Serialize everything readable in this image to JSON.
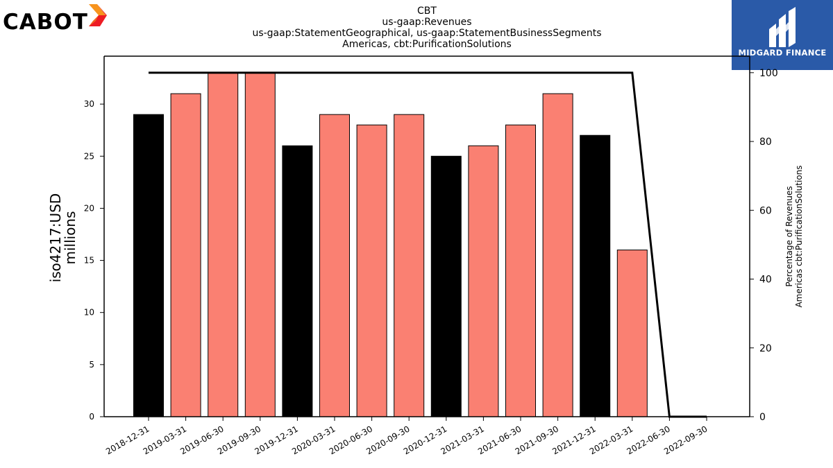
{
  "branding": {
    "company_logo_text": "CABOT",
    "company_logo_icon": "cabot-flame-icon",
    "provider_logo_text": "MIDGARD FINANCE",
    "provider_logo_icon": "midgard-rune-icon",
    "provider_color": "#2a5aa8"
  },
  "chart_data": {
    "type": "bar",
    "title_lines": [
      "CBT",
      "us-gaap:Revenues",
      "us-gaap:StatementGeographical, us-gaap:StatementBusinessSegments",
      "Americas, cbt:PurificationSolutions"
    ],
    "ylabel_lines": [
      "iso4217:USD",
      "millions"
    ],
    "y2label_lines": [
      "Percentage of Revenues",
      "Americas cbt:PurificationSolutions"
    ],
    "categories": [
      "2018-12-31",
      "2019-03-31",
      "2019-06-30",
      "2019-09-30",
      "2019-12-31",
      "2020-03-31",
      "2020-06-30",
      "2020-09-30",
      "2020-12-31",
      "2021-03-31",
      "2021-06-30",
      "2021-09-30",
      "2021-12-31",
      "2022-03-31",
      "2022-06-30",
      "2022-09-30"
    ],
    "values": [
      29,
      31,
      33,
      33,
      26,
      29,
      28,
      29,
      25,
      26,
      28,
      31,
      27,
      16,
      null,
      null
    ],
    "bar_colors": [
      "#000000",
      "#fa8072",
      "#fa8072",
      "#fa8072",
      "#000000",
      "#fa8072",
      "#fa8072",
      "#fa8072",
      "#000000",
      "#fa8072",
      "#fa8072",
      "#fa8072",
      "#000000",
      "#fa8072",
      "#fa8072",
      "#fa8072"
    ],
    "percentage_series": {
      "values": [
        100,
        100,
        100,
        100,
        100,
        100,
        100,
        100,
        100,
        100,
        100,
        100,
        100,
        100,
        0,
        0
      ],
      "color": "#000000"
    },
    "ylim": [
      0,
      34.6
    ],
    "yticks": [
      0,
      5,
      10,
      15,
      20,
      25,
      30
    ],
    "y2lim": [
      0,
      104.8
    ],
    "y2ticks": [
      0,
      20,
      40,
      60,
      80,
      100
    ],
    "grid": false
  }
}
